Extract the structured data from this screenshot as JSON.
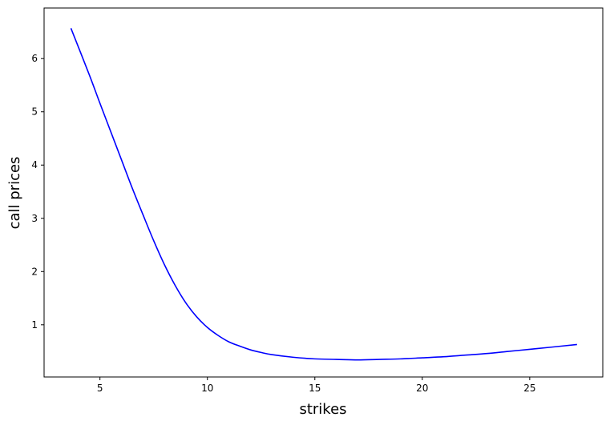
{
  "chart_data": {
    "type": "line",
    "title": "",
    "xlabel": "strikes",
    "ylabel": "call prices",
    "xlim": [
      2.4,
      28.4
    ],
    "ylim": [
      0.02,
      6.95
    ],
    "xticks": [
      5,
      10,
      15,
      20,
      25
    ],
    "yticks": [
      1,
      2,
      3,
      4,
      5,
      6
    ],
    "grid": false,
    "legend": "none",
    "series": [
      {
        "color": "#0000ff",
        "x": [
          3.65,
          4.5,
          5.0,
          5.5,
          6.0,
          6.5,
          7.0,
          7.5,
          8.0,
          8.5,
          9.0,
          9.5,
          10.0,
          10.5,
          11.0,
          11.5,
          12.0,
          12.5,
          13.0,
          14.0,
          15.0,
          16.0,
          17.0,
          18.0,
          19.0,
          20.0,
          21.0,
          22.0,
          23.0,
          24.0,
          25.0,
          26.0,
          27.2
        ],
        "y": [
          6.57,
          5.7,
          5.16,
          4.63,
          4.1,
          3.57,
          3.07,
          2.58,
          2.13,
          1.74,
          1.41,
          1.15,
          0.95,
          0.8,
          0.68,
          0.6,
          0.53,
          0.48,
          0.44,
          0.39,
          0.36,
          0.35,
          0.34,
          0.35,
          0.36,
          0.38,
          0.4,
          0.43,
          0.46,
          0.5,
          0.54,
          0.58,
          0.63
        ]
      }
    ]
  }
}
